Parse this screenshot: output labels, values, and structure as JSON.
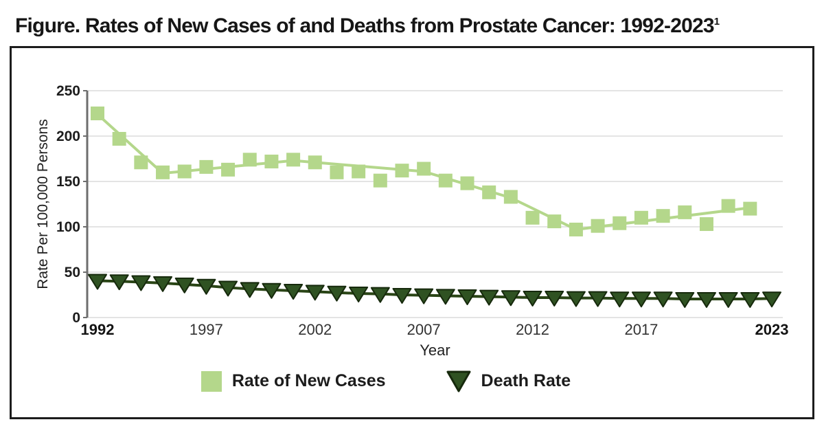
{
  "title": {
    "text": "Figure. Rates of New Cases of and Deaths from Prostate Cancer: 1992-2023",
    "superscript": "1"
  },
  "chart_data": {
    "type": "line",
    "title": "Rates of New Cases of and Deaths from Prostate Cancer: 1992-2023",
    "xlabel": "Year",
    "ylabel": "Rate Per 100,000 Persons",
    "ylim": [
      0,
      250
    ],
    "xlim": [
      1992,
      2023
    ],
    "y_ticks": [
      0,
      50,
      100,
      150,
      200,
      250
    ],
    "x_ticks": [
      1992,
      1997,
      2002,
      2007,
      2012,
      2017,
      2023
    ],
    "grid": "horizontal",
    "legend_position": "bottom",
    "colors": {
      "new_cases": "#b4d78b",
      "death_rate": "#2f5222",
      "death_rate_outline": "#16290c",
      "gridline": "#e4e4e4",
      "axis": "#6e6e6e",
      "tick_text": "#1d1d1d"
    },
    "series": [
      {
        "name": "Rate of New Cases",
        "marker": "square",
        "color": "#b4d78b",
        "years": [
          1992,
          1993,
          1994,
          1995,
          1996,
          1997,
          1998,
          1999,
          2000,
          2001,
          2002,
          2003,
          2004,
          2005,
          2006,
          2007,
          2008,
          2009,
          2010,
          2011,
          2012,
          2013,
          2014,
          2015,
          2016,
          2017,
          2018,
          2019,
          2020,
          2021,
          2022
        ],
        "values": [
          225,
          197,
          171,
          160,
          161,
          166,
          163,
          174,
          172,
          174,
          171,
          160,
          161,
          151,
          162,
          164,
          151,
          148,
          138,
          133,
          110,
          106,
          97,
          101,
          104,
          110,
          112,
          116,
          103,
          123,
          120
        ],
        "trend_line": {
          "years": [
            1992,
            1995,
            2001,
            2007,
            2011,
            2014,
            2022
          ],
          "values": [
            224,
            159,
            173,
            161,
            132,
            97,
            121
          ]
        }
      },
      {
        "name": "Death Rate",
        "marker": "triangle-down",
        "color": "#2f5222",
        "years": [
          1992,
          1993,
          1994,
          1995,
          1996,
          1997,
          1998,
          1999,
          2000,
          2001,
          2002,
          2003,
          2004,
          2005,
          2006,
          2007,
          2008,
          2009,
          2010,
          2011,
          2012,
          2013,
          2014,
          2015,
          2016,
          2017,
          2018,
          2019,
          2020,
          2021,
          2022,
          2023
        ],
        "values": [
          40.5,
          40,
          39,
          38,
          36.5,
          35,
          33,
          31.5,
          30.5,
          29.5,
          28.5,
          27.5,
          26.5,
          26,
          25,
          24.5,
          24,
          23.5,
          23,
          22.5,
          22,
          22,
          21.5,
          21.5,
          21,
          21,
          21,
          20.5,
          20.5,
          20.5,
          20.5,
          21
        ]
      }
    ]
  }
}
